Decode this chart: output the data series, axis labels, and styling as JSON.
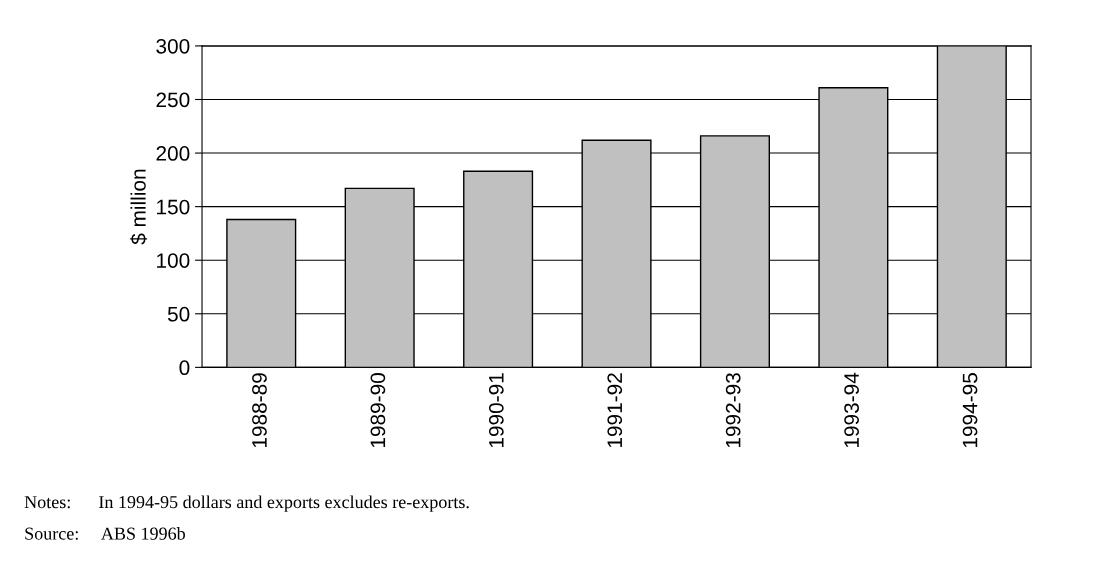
{
  "chart_data": {
    "type": "bar",
    "ylabel": "$ million",
    "categories": [
      "1988-89",
      "1989-90",
      "1990-91",
      "1991-92",
      "1992-93",
      "1993-94",
      "1994-95"
    ],
    "values": [
      138,
      167,
      183,
      212,
      216,
      261,
      300
    ],
    "color": "#c0c0c0",
    "ylim": [
      0,
      300
    ],
    "yticks": [
      0,
      50,
      100,
      150,
      200,
      250,
      300
    ],
    "grid": "y",
    "annotations": [
      "Notes:      In 1994-95 dollars and exports excludes re-exports.",
      "Source:     ABS 1996b"
    ]
  }
}
